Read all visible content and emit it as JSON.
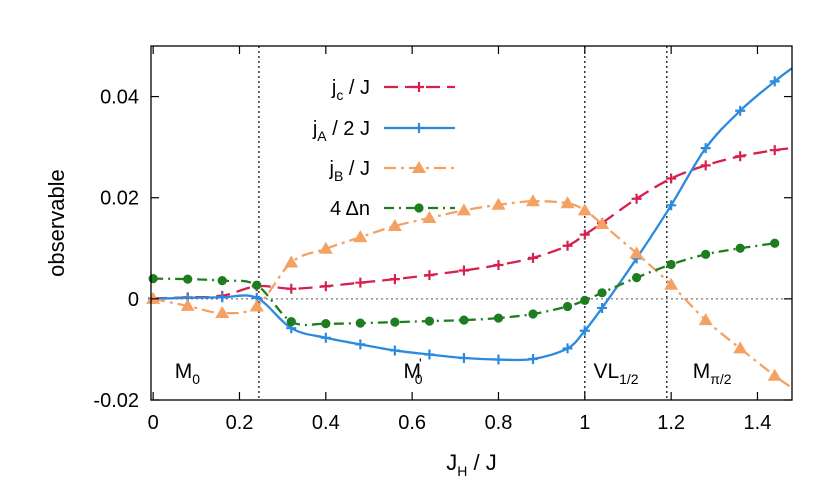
{
  "chart_data": {
    "type": "line",
    "xlabel": {
      "main": "J",
      "sub": "H",
      "rest": " / J"
    },
    "ylabel": "observable",
    "xlim": [
      -0.005,
      1.48
    ],
    "ylim": [
      -0.02,
      0.05
    ],
    "xticks": [
      "0",
      "0.2",
      "0.4",
      "0.6",
      "0.8",
      "1",
      "1.2",
      "1.4"
    ],
    "xtick_values": [
      0,
      0.2,
      0.4,
      0.6,
      0.8,
      1.0,
      1.2,
      1.4
    ],
    "yticks": [
      "-0.02",
      "0",
      "0.02",
      "0.04"
    ],
    "ytick_values": [
      -0.02,
      0,
      0.02,
      0.04
    ],
    "zero_line": 0,
    "vlines": [
      0.245,
      1.0,
      1.19
    ],
    "regions": [
      {
        "main": "M",
        "sub": "0",
        "prime": "",
        "x": 0.05
      },
      {
        "main": "M",
        "sub": "0",
        "prime": "'",
        "x": 0.58
      },
      {
        "main": "VL",
        "sub": "1/2",
        "prime": "",
        "x": 1.02
      },
      {
        "main": "M",
        "sub": "π/2",
        "prime": "",
        "x": 1.25
      }
    ],
    "legend_position": "top-center",
    "series": [
      {
        "legend_main": "j",
        "legend_sub": "c",
        "legend_rest": " / J",
        "color": "#d6214e",
        "dash": "14,7",
        "marker": "plus",
        "x": [
          0,
          0.08,
          0.16,
          0.24,
          0.32,
          0.4,
          0.48,
          0.56,
          0.64,
          0.72,
          0.8,
          0.88,
          0.96,
          1.0,
          1.04,
          1.12,
          1.2,
          1.28,
          1.36,
          1.44,
          1.48
        ],
        "y": [
          0.0001,
          0.0003,
          0.0006,
          0.0025,
          0.002,
          0.0025,
          0.0032,
          0.0039,
          0.0047,
          0.0056,
          0.0067,
          0.0081,
          0.0105,
          0.0127,
          0.015,
          0.0198,
          0.0238,
          0.0264,
          0.0282,
          0.0294,
          0.0298
        ]
      },
      {
        "legend_main": "j",
        "legend_sub": "A",
        "legend_rest": " / 2 J",
        "color": "#2b8ae0",
        "dash": "",
        "marker": "plus",
        "x": [
          0,
          0.08,
          0.16,
          0.24,
          0.32,
          0.4,
          0.48,
          0.56,
          0.64,
          0.72,
          0.8,
          0.88,
          0.96,
          1.0,
          1.04,
          1.12,
          1.2,
          1.28,
          1.36,
          1.44,
          1.48
        ],
        "y": [
          0.0,
          0.0002,
          0.0003,
          0.0002,
          -0.0058,
          -0.0077,
          -0.009,
          -0.0102,
          -0.011,
          -0.0117,
          -0.012,
          -0.0119,
          -0.0098,
          -0.0063,
          -0.0018,
          0.008,
          0.0185,
          0.0298,
          0.0372,
          0.043,
          0.0456
        ]
      },
      {
        "legend_main": "j",
        "legend_sub": "B",
        "legend_rest": " / J",
        "color": "#f4a264",
        "dash": "12,5,3,5",
        "marker": "triangle",
        "x": [
          0,
          0.08,
          0.16,
          0.24,
          0.32,
          0.4,
          0.48,
          0.56,
          0.64,
          0.72,
          0.8,
          0.88,
          0.96,
          1.0,
          1.04,
          1.12,
          1.2,
          1.28,
          1.36,
          1.44,
          1.48
        ],
        "y": [
          0.0,
          -0.0014,
          -0.0028,
          -0.0015,
          0.0072,
          0.0099,
          0.0122,
          0.0144,
          0.016,
          0.0175,
          0.0186,
          0.0193,
          0.0189,
          0.0175,
          0.0148,
          0.009,
          0.0028,
          -0.0042,
          -0.0098,
          -0.0152,
          -0.0176
        ]
      },
      {
        "legend_main": "4 Δn",
        "legend_sub": "",
        "legend_rest": "",
        "color": "#1e7d1e",
        "dash": "10,5,2,5",
        "marker": "circle",
        "x": [
          0,
          0.08,
          0.16,
          0.24,
          0.32,
          0.4,
          0.48,
          0.56,
          0.64,
          0.72,
          0.8,
          0.88,
          0.96,
          1.0,
          1.04,
          1.12,
          1.2,
          1.28,
          1.36,
          1.44
        ],
        "y": [
          0.004,
          0.0039,
          0.0036,
          0.0027,
          -0.0045,
          -0.0049,
          -0.0048,
          -0.0046,
          -0.0044,
          -0.0042,
          -0.0038,
          -0.003,
          -0.0015,
          -0.0003,
          0.0012,
          0.0042,
          0.0068,
          0.0088,
          0.01,
          0.011
        ]
      }
    ]
  }
}
